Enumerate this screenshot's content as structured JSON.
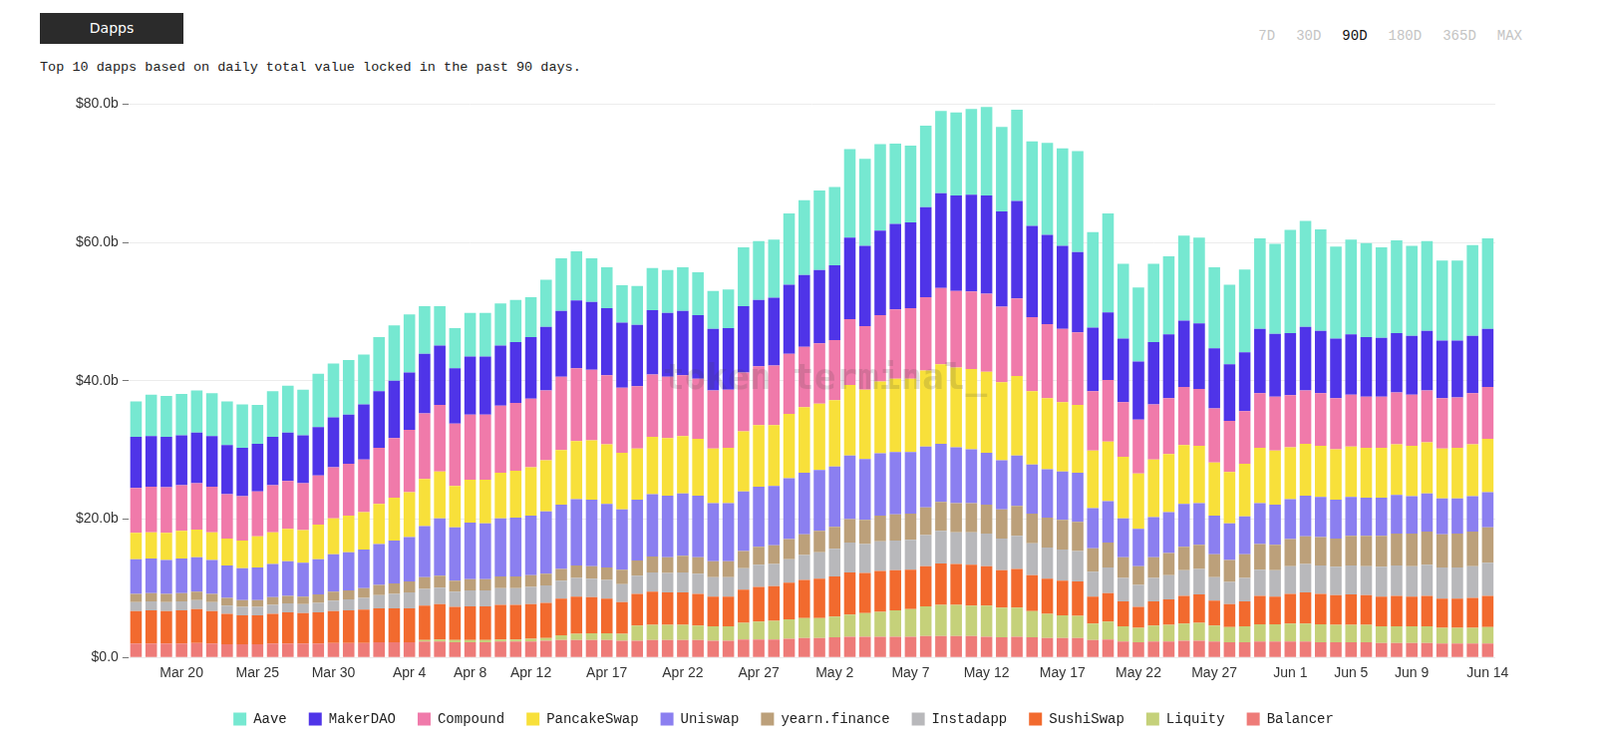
{
  "chart_data": {
    "type": "bar",
    "title": "Dapps",
    "subtitle": "Top 10 dapps based on daily total value locked in the past 90 days.",
    "range_options": [
      "7D",
      "30D",
      "90D",
      "180D",
      "365D",
      "MAX"
    ],
    "selected_range": "90D",
    "watermark": "token terminal_",
    "stacked": true,
    "grid": true,
    "legend": "bottom",
    "ylim": [
      0,
      80
    ],
    "yticks": [
      {
        "value": 0,
        "label": "$0.0"
      },
      {
        "value": 20,
        "label": "$20.0b"
      },
      {
        "value": 40,
        "label": "$40.0b"
      },
      {
        "value": 60,
        "label": "$60.0b"
      },
      {
        "value": 80,
        "label": "$80.0b"
      }
    ],
    "categories": [
      null,
      null,
      null,
      "Mar 20",
      null,
      null,
      null,
      null,
      "Mar 25",
      null,
      null,
      null,
      null,
      "Mar 30",
      null,
      null,
      null,
      null,
      "Apr 4",
      null,
      null,
      null,
      "Apr 8",
      null,
      null,
      null,
      "Apr 12",
      null,
      null,
      null,
      null,
      "Apr 17",
      null,
      null,
      null,
      null,
      "Apr 22",
      null,
      null,
      null,
      null,
      "Apr 27",
      null,
      null,
      null,
      null,
      "May 2",
      null,
      null,
      null,
      null,
      "May 7",
      null,
      null,
      null,
      null,
      "May 12",
      null,
      null,
      null,
      null,
      "May 17",
      null,
      null,
      null,
      null,
      "May 22",
      null,
      null,
      null,
      null,
      "May 27",
      null,
      null,
      null,
      null,
      "Jun 1",
      null,
      null,
      null,
      "Jun 5",
      null,
      null,
      null,
      "Jun 9",
      null,
      null,
      null,
      null,
      "Jun 14"
    ],
    "series": [
      {
        "name": "Aave",
        "color": "#76e8d1",
        "values": [
          5.1,
          6.0,
          5.9,
          6.0,
          6.1,
          6.2,
          6.3,
          6.3,
          5.6,
          6.6,
          6.8,
          6.6,
          7.7,
          7.8,
          7.9,
          7.2,
          7.8,
          8.0,
          8.4,
          6.9,
          5.7,
          5.8,
          6.3,
          6.3,
          6.1,
          6.1,
          5.8,
          6.8,
          7.6,
          7.1,
          6.3,
          5.9,
          5.4,
          5.6,
          6.1,
          6.2,
          6.3,
          6.2,
          5.5,
          5.6,
          8.5,
          8.5,
          8.4,
          10.3,
          10.8,
          11.5,
          11.3,
          12.8,
          12.6,
          12.5,
          11.6,
          11.1,
          11.8,
          11.9,
          12.0,
          12.4,
          12.8,
          12.2,
          13.2,
          12.2,
          13.3,
          14.1,
          14.6,
          13.8,
          14.3,
          10.8,
          10.7,
          11.3,
          11.3,
          12.3,
          12.4,
          11.7,
          11.5,
          12.0,
          13.1,
          13.0,
          14.9,
          15.3,
          14.7,
          13.3,
          13.7,
          13.6,
          13.1,
          13.4,
          13.0,
          13.0,
          11.6,
          11.6,
          13.1,
          13.1
        ]
      },
      {
        "name": "MakerDAO",
        "color": "#4f34e8",
        "values": [
          7.4,
          7.3,
          7.3,
          7.2,
          7.3,
          7.3,
          7.1,
          7.0,
          6.9,
          7.0,
          7.0,
          6.9,
          7.0,
          7.2,
          7.1,
          8.0,
          8.2,
          8.3,
          8.3,
          8.6,
          8.6,
          8.0,
          8.4,
          8.4,
          8.7,
          8.8,
          8.9,
          9.2,
          9.5,
          9.8,
          9.8,
          9.7,
          9.4,
          8.9,
          9.3,
          9.2,
          9.3,
          9.2,
          8.9,
          8.9,
          9.6,
          9.6,
          9.8,
          10.0,
          10.4,
          10.6,
          10.8,
          11.8,
          11.6,
          12.2,
          12.4,
          12.4,
          13.0,
          13.7,
          13.8,
          14.0,
          14.2,
          13.8,
          14.1,
          13.2,
          12.9,
          12.0,
          11.6,
          9.2,
          9.8,
          9.2,
          8.4,
          9.0,
          9.2,
          9.6,
          9.5,
          8.7,
          8.2,
          8.5,
          9.3,
          9.1,
          9.0,
          9.2,
          9.0,
          8.6,
          8.7,
          8.6,
          8.5,
          8.6,
          8.5,
          8.6,
          8.3,
          8.2,
          8.3,
          8.4
        ]
      },
      {
        "name": "Compound",
        "color": "#f07aaa",
        "values": [
          6.5,
          6.6,
          6.6,
          6.6,
          6.7,
          6.6,
          6.4,
          6.4,
          6.5,
          6.8,
          6.9,
          6.8,
          7.1,
          7.4,
          7.5,
          7.6,
          8.1,
          8.6,
          9.0,
          9.5,
          9.6,
          9.0,
          9.4,
          9.4,
          9.7,
          9.8,
          9.9,
          10.1,
          10.6,
          10.5,
          10.2,
          10.0,
          9.4,
          9.0,
          9.0,
          8.9,
          8.8,
          8.7,
          8.4,
          8.4,
          8.5,
          8.5,
          8.6,
          8.7,
          8.7,
          8.7,
          8.7,
          9.5,
          9.2,
          9.6,
          10.0,
          10.2,
          10.6,
          11.0,
          11.1,
          11.2,
          11.3,
          10.9,
          11.2,
          10.7,
          10.7,
          10.6,
          10.5,
          8.6,
          8.9,
          7.9,
          7.8,
          8.0,
          8.1,
          8.4,
          8.2,
          7.8,
          7.4,
          7.6,
          7.9,
          7.8,
          7.5,
          7.7,
          7.6,
          7.4,
          7.5,
          7.4,
          7.4,
          7.5,
          7.4,
          7.5,
          7.3,
          7.3,
          7.4,
          7.5
        ]
      },
      {
        "name": "PancakeSwap",
        "color": "#f8e03a",
        "values": [
          3.8,
          3.8,
          3.9,
          4.0,
          4.0,
          4.0,
          3.9,
          4.0,
          4.5,
          4.6,
          4.7,
          4.7,
          5.0,
          5.2,
          5.3,
          5.4,
          5.8,
          6.2,
          6.5,
          6.8,
          6.8,
          6.0,
          6.2,
          6.3,
          6.6,
          6.8,
          7.0,
          7.4,
          7.9,
          8.4,
          8.6,
          8.6,
          8.2,
          7.4,
          8.3,
          8.3,
          8.3,
          8.2,
          7.9,
          8.0,
          8.7,
          8.9,
          8.8,
          9.3,
          9.5,
          9.6,
          9.6,
          10.2,
          10.0,
          10.4,
          10.6,
          10.6,
          11.0,
          11.5,
          11.5,
          11.6,
          11.7,
          11.3,
          11.5,
          10.6,
          10.3,
          10.0,
          9.8,
          8.3,
          8.6,
          8.9,
          8.0,
          8.3,
          8.4,
          8.5,
          8.3,
          7.7,
          7.4,
          7.6,
          8.0,
          7.8,
          7.5,
          7.5,
          7.4,
          7.3,
          7.3,
          7.2,
          7.2,
          7.3,
          7.3,
          7.4,
          7.2,
          7.3,
          7.5,
          7.7
        ]
      },
      {
        "name": "Uniswap",
        "color": "#8b7ff0",
        "values": [
          5.0,
          5.0,
          4.9,
          5.0,
          5.0,
          4.9,
          4.7,
          4.6,
          4.7,
          4.8,
          5.0,
          4.9,
          5.1,
          5.4,
          5.5,
          5.6,
          5.9,
          6.2,
          6.4,
          7.4,
          8.3,
          7.7,
          8.2,
          8.1,
          8.4,
          8.5,
          8.6,
          9.0,
          9.3,
          9.6,
          9.6,
          9.2,
          8.7,
          8.8,
          9.0,
          8.9,
          9.0,
          8.9,
          8.4,
          8.4,
          8.6,
          8.7,
          8.6,
          8.8,
          8.9,
          8.8,
          8.7,
          9.2,
          8.8,
          9.0,
          9.0,
          8.9,
          8.8,
          8.4,
          8.1,
          7.8,
          7.5,
          7.1,
          7.3,
          7.1,
          7.0,
          7.0,
          7.1,
          5.8,
          6.0,
          5.6,
          5.4,
          5.8,
          5.9,
          6.2,
          6.0,
          5.6,
          5.3,
          5.5,
          5.9,
          5.8,
          5.8,
          5.9,
          5.8,
          5.6,
          5.6,
          5.5,
          5.5,
          5.6,
          5.4,
          5.5,
          5.2,
          5.1,
          5.1,
          5.1
        ]
      },
      {
        "name": "yearn.finance",
        "color": "#bca07a",
        "values": [
          1.2,
          1.2,
          1.2,
          1.2,
          1.2,
          1.2,
          1.1,
          1.0,
          1.0,
          1.1,
          1.1,
          1.1,
          1.2,
          1.3,
          1.3,
          1.4,
          1.5,
          1.5,
          1.6,
          1.7,
          1.7,
          1.6,
          1.6,
          1.6,
          1.7,
          1.7,
          1.7,
          1.7,
          1.7,
          1.8,
          1.8,
          1.8,
          2.1,
          2.2,
          2.3,
          2.3,
          2.4,
          2.4,
          2.3,
          2.3,
          2.5,
          2.6,
          2.7,
          2.9,
          3.0,
          3.1,
          3.2,
          3.4,
          3.5,
          3.7,
          3.8,
          3.8,
          4.0,
          4.2,
          4.2,
          4.2,
          4.2,
          4.2,
          4.3,
          4.3,
          4.3,
          4.3,
          4.2,
          3.4,
          3.6,
          3.0,
          2.7,
          3.0,
          3.2,
          3.4,
          3.5,
          3.3,
          3.2,
          3.4,
          3.7,
          3.7,
          3.9,
          4.0,
          4.1,
          4.1,
          4.3,
          4.4,
          4.5,
          4.6,
          4.7,
          4.8,
          4.8,
          4.9,
          5.0,
          5.1
        ]
      },
      {
        "name": "Instadapp",
        "color": "#b8b8bb",
        "values": [
          1.3,
          1.3,
          1.3,
          1.3,
          1.3,
          1.3,
          1.2,
          1.2,
          1.2,
          1.3,
          1.3,
          1.3,
          1.4,
          1.5,
          1.6,
          1.7,
          1.9,
          2.1,
          2.3,
          2.4,
          2.4,
          2.2,
          2.3,
          2.3,
          2.4,
          2.4,
          2.5,
          2.5,
          2.6,
          2.7,
          2.7,
          2.7,
          2.6,
          2.6,
          2.8,
          2.8,
          2.9,
          2.9,
          2.8,
          2.8,
          3.1,
          3.2,
          3.2,
          3.4,
          3.6,
          3.8,
          4.0,
          4.3,
          4.2,
          4.3,
          4.3,
          4.3,
          4.5,
          4.7,
          4.6,
          4.7,
          4.7,
          4.6,
          4.8,
          4.6,
          4.5,
          4.5,
          4.4,
          3.6,
          3.7,
          3.4,
          3.2,
          3.4,
          3.5,
          3.7,
          3.7,
          3.4,
          3.2,
          3.4,
          3.8,
          3.8,
          4.0,
          4.1,
          4.1,
          4.1,
          4.2,
          4.2,
          4.3,
          4.4,
          4.4,
          4.5,
          4.5,
          4.5,
          4.6,
          4.8
        ]
      },
      {
        "name": "SushiSwap",
        "color": "#f26a2e",
        "values": [
          4.7,
          4.8,
          4.7,
          4.8,
          4.9,
          4.7,
          4.4,
          4.2,
          4.2,
          4.3,
          4.5,
          4.4,
          4.5,
          4.6,
          4.7,
          4.8,
          4.9,
          4.9,
          4.9,
          5.0,
          5.1,
          4.8,
          4.9,
          4.9,
          5.0,
          5.0,
          5.0,
          5.1,
          5.3,
          5.4,
          5.2,
          5.0,
          4.6,
          4.6,
          4.8,
          4.7,
          4.7,
          4.6,
          4.3,
          4.3,
          4.8,
          5.0,
          5.0,
          5.3,
          5.5,
          5.7,
          5.8,
          6.1,
          5.8,
          5.9,
          5.8,
          5.7,
          5.8,
          6.0,
          5.9,
          5.9,
          5.7,
          5.4,
          5.6,
          5.2,
          5.1,
          5.0,
          5.0,
          3.9,
          4.1,
          3.6,
          3.0,
          3.5,
          3.7,
          4.0,
          4.1,
          3.6,
          3.3,
          3.6,
          4.1,
          4.0,
          4.3,
          4.5,
          4.4,
          4.3,
          4.4,
          4.3,
          4.3,
          4.4,
          4.3,
          4.4,
          4.2,
          4.2,
          4.3,
          4.5
        ]
      },
      {
        "name": "Liquity",
        "color": "#c5d17a",
        "values": [
          0,
          0,
          0,
          0,
          0,
          0,
          0,
          0,
          0,
          0,
          0,
          0,
          0,
          0,
          0,
          0,
          0,
          0,
          0,
          0.2,
          0.3,
          0.3,
          0.3,
          0.3,
          0.3,
          0.3,
          0.4,
          0.4,
          0.7,
          0.9,
          1.0,
          1.0,
          1.0,
          2.2,
          2.2,
          2.2,
          2.2,
          2.1,
          2.1,
          2.1,
          2.4,
          2.6,
          2.7,
          2.8,
          2.9,
          2.9,
          3.0,
          3.2,
          3.4,
          3.6,
          3.8,
          4.0,
          4.3,
          4.5,
          4.5,
          4.4,
          4.5,
          4.3,
          4.2,
          3.8,
          3.5,
          3.3,
          3.2,
          2.4,
          2.6,
          2.2,
          2.1,
          2.3,
          2.4,
          2.5,
          2.6,
          2.3,
          2.2,
          2.3,
          2.5,
          2.5,
          2.6,
          2.6,
          2.6,
          2.5,
          2.5,
          2.5,
          2.4,
          2.4,
          2.4,
          2.4,
          2.3,
          2.3,
          2.3,
          2.4
        ]
      },
      {
        "name": "Balancer",
        "color": "#ee7b78",
        "values": [
          2.0,
          2.0,
          2.0,
          2.0,
          2.1,
          2.0,
          1.9,
          1.9,
          1.9,
          2.0,
          2.0,
          2.0,
          2.0,
          2.1,
          2.1,
          2.1,
          2.2,
          2.2,
          2.2,
          2.3,
          2.3,
          2.2,
          2.2,
          2.2,
          2.3,
          2.3,
          2.3,
          2.4,
          2.5,
          2.5,
          2.5,
          2.5,
          2.4,
          2.4,
          2.5,
          2.5,
          2.5,
          2.5,
          2.4,
          2.4,
          2.6,
          2.6,
          2.6,
          2.7,
          2.8,
          2.8,
          2.9,
          3.0,
          3.0,
          3.0,
          3.0,
          3.0,
          3.1,
          3.1,
          3.1,
          3.1,
          3.0,
          2.9,
          3.0,
          2.9,
          2.8,
          2.8,
          2.8,
          2.5,
          2.6,
          2.3,
          2.2,
          2.3,
          2.3,
          2.4,
          2.4,
          2.3,
          2.2,
          2.2,
          2.3,
          2.3,
          2.3,
          2.3,
          2.2,
          2.2,
          2.2,
          2.2,
          2.1,
          2.1,
          2.1,
          2.1,
          2.0,
          2.0,
          2.0,
          2.0
        ]
      }
    ]
  }
}
